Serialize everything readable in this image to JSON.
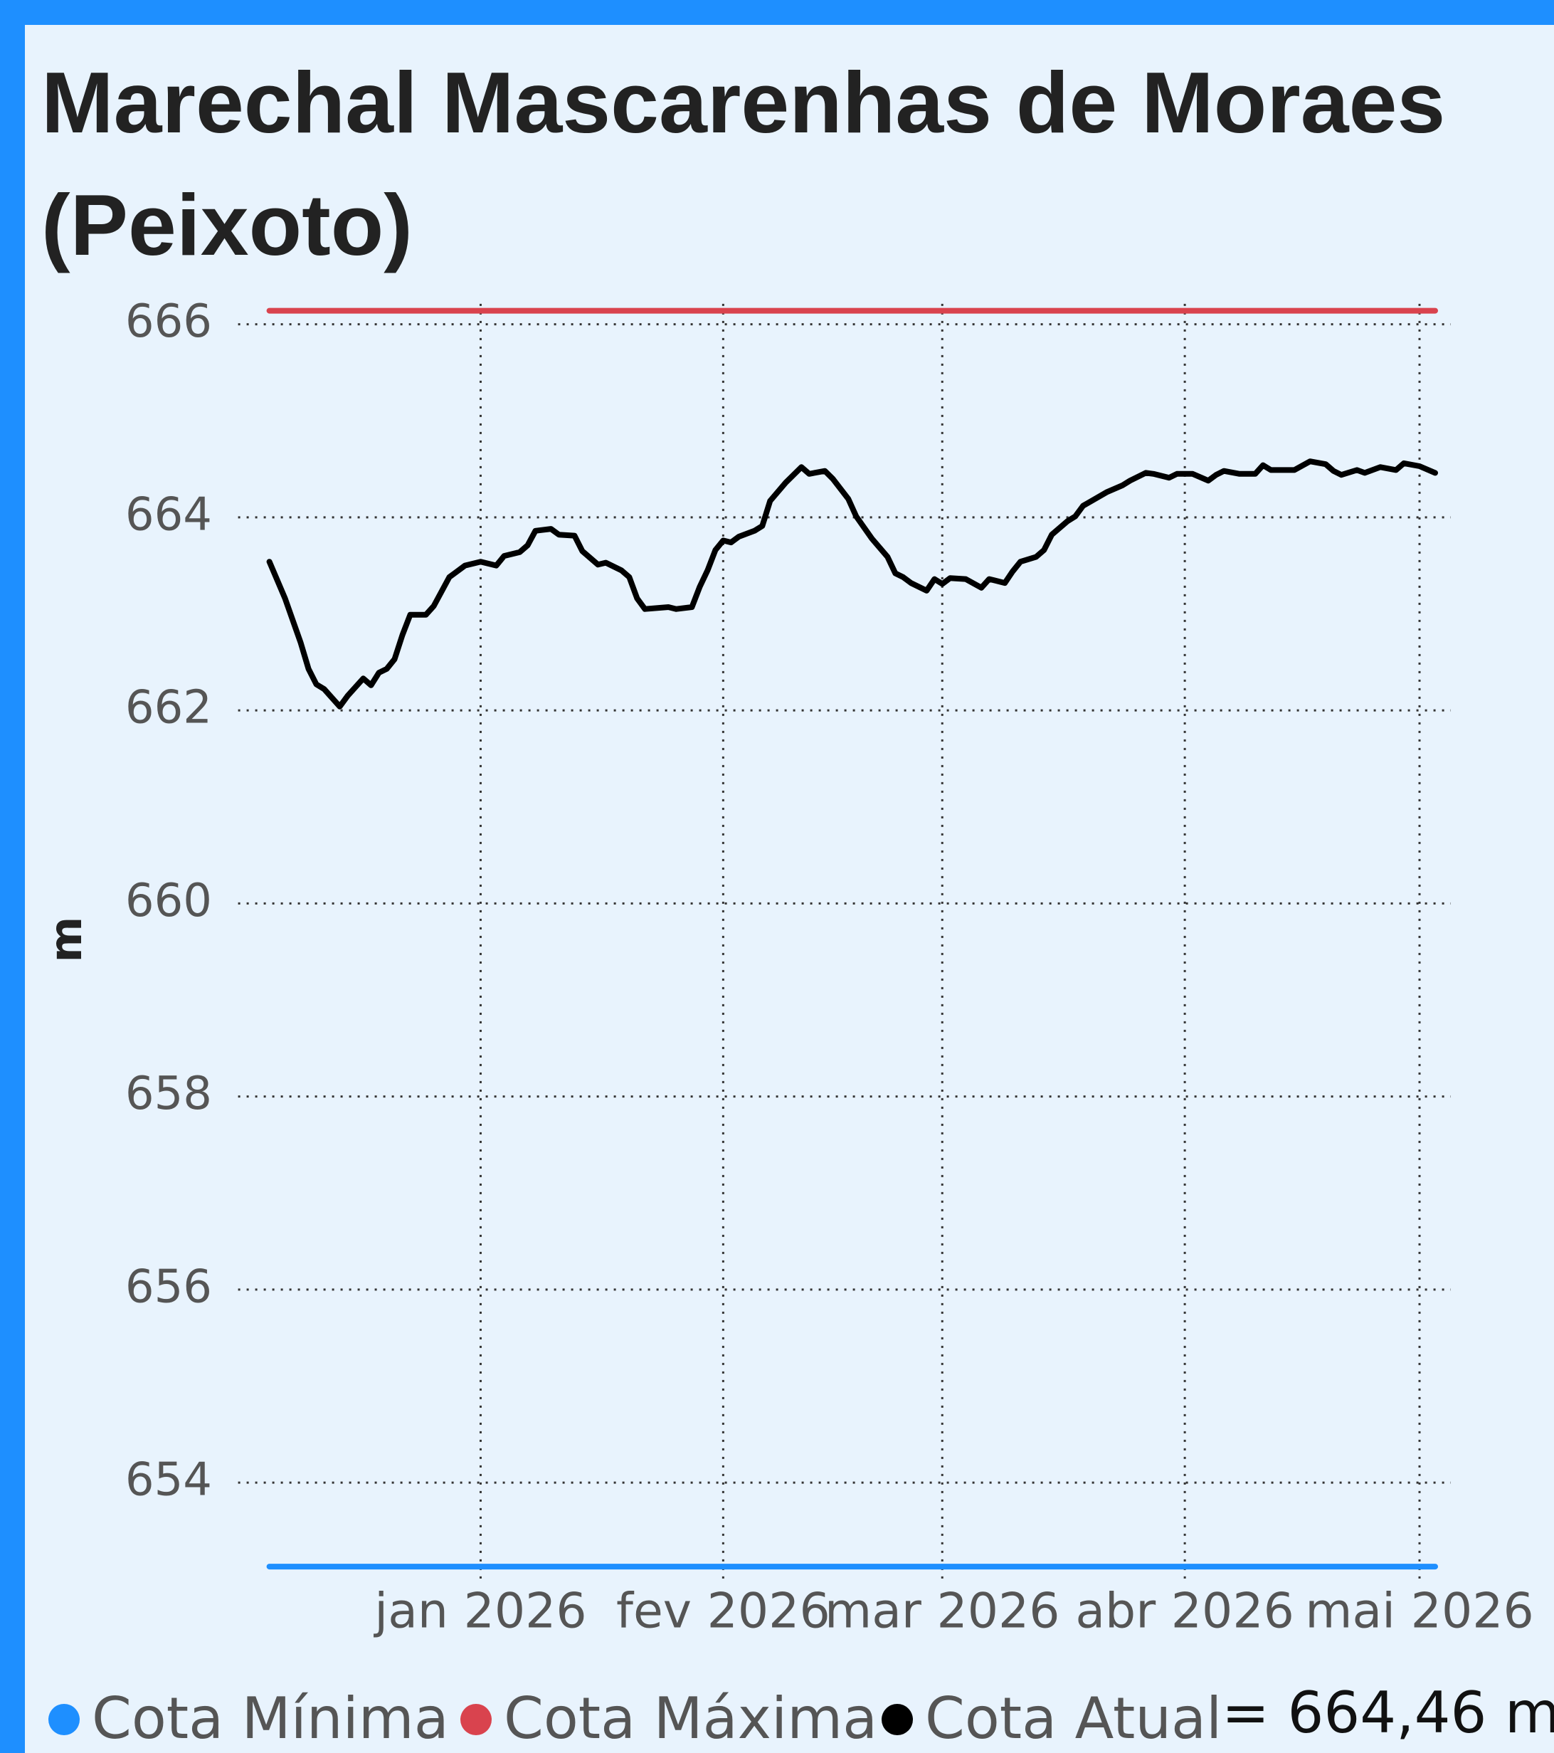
{
  "chart_data": {
    "type": "line",
    "title": "Marechal Mascarenhas de Moraes (Peixoto)",
    "y_label": "m",
    "annotation": "= 664,46 m",
    "x": [
      -27,
      -25,
      -23,
      -22,
      -21,
      -20,
      -18,
      -17,
      -15,
      -14,
      -13,
      -12,
      -11,
      -10,
      -9,
      -7,
      -6,
      -4,
      -2,
      0,
      2,
      3,
      5,
      6,
      7,
      9,
      10,
      12,
      13,
      15,
      16,
      18,
      19,
      20,
      21,
      24,
      25,
      27,
      28,
      29,
      30,
      31,
      32,
      33,
      35,
      36,
      37,
      39,
      41,
      42,
      44,
      45,
      47,
      48,
      50,
      52,
      53,
      54,
      55,
      57,
      58,
      59,
      60,
      62,
      64,
      65,
      67,
      68,
      69,
      71,
      72,
      73,
      75,
      76,
      77,
      80,
      82,
      83,
      85,
      86,
      88,
      89,
      91,
      93,
      94,
      95,
      97,
      99,
      100,
      101,
      104,
      106,
      108,
      109,
      110,
      112,
      113,
      115,
      117,
      118,
      120,
      122
    ],
    "xlim": [
      -31,
      124
    ],
    "xticks": [
      {
        "value": 0,
        "label": "jan 2026"
      },
      {
        "value": 31,
        "label": "fev 2026"
      },
      {
        "value": 59,
        "label": "mar 2026"
      },
      {
        "value": 90,
        "label": "abr 2026"
      },
      {
        "value": 120,
        "label": "mai 2026"
      }
    ],
    "ylim": [
      653,
      666.3
    ],
    "yticks": [
      654,
      656,
      658,
      660,
      662,
      664,
      666
    ],
    "grid": true,
    "series": [
      {
        "name": "Cota Mínima",
        "color": "#1e8fff",
        "x": [
          -27,
          122
        ],
        "values": [
          653.13,
          653.13
        ]
      },
      {
        "name": "Cota Máxima",
        "color": "#d9434e",
        "x": [
          -27,
          122
        ],
        "values": [
          666.14,
          666.14
        ]
      },
      {
        "name": "Cota Atual",
        "color": "#000000",
        "values": [
          663.54,
          663.16,
          662.7,
          662.43,
          662.27,
          662.22,
          662.04,
          662.15,
          662.33,
          662.26,
          662.39,
          662.43,
          662.53,
          662.78,
          662.99,
          662.99,
          663.08,
          663.38,
          663.5,
          663.54,
          663.5,
          663.6,
          663.64,
          663.71,
          663.86,
          663.88,
          663.82,
          663.81,
          663.65,
          663.51,
          663.53,
          663.45,
          663.38,
          663.16,
          663.05,
          663.07,
          663.05,
          663.07,
          663.28,
          663.45,
          663.66,
          663.76,
          663.74,
          663.8,
          663.86,
          663.91,
          664.17,
          664.36,
          664.52,
          664.45,
          664.48,
          664.4,
          664.19,
          664.01,
          663.78,
          663.59,
          663.42,
          663.38,
          663.32,
          663.24,
          663.36,
          663.31,
          663.37,
          663.36,
          663.27,
          663.36,
          663.32,
          663.44,
          663.54,
          663.59,
          663.66,
          663.82,
          663.96,
          664.01,
          664.12,
          664.26,
          664.33,
          664.38,
          664.46,
          664.45,
          664.41,
          664.45,
          664.45,
          664.38,
          664.44,
          664.48,
          664.45,
          664.45,
          664.54,
          664.49,
          664.49,
          664.58,
          664.55,
          664.48,
          664.44,
          664.49,
          664.46,
          664.52,
          664.49,
          664.56,
          664.53,
          664.46
        ]
      }
    ]
  }
}
